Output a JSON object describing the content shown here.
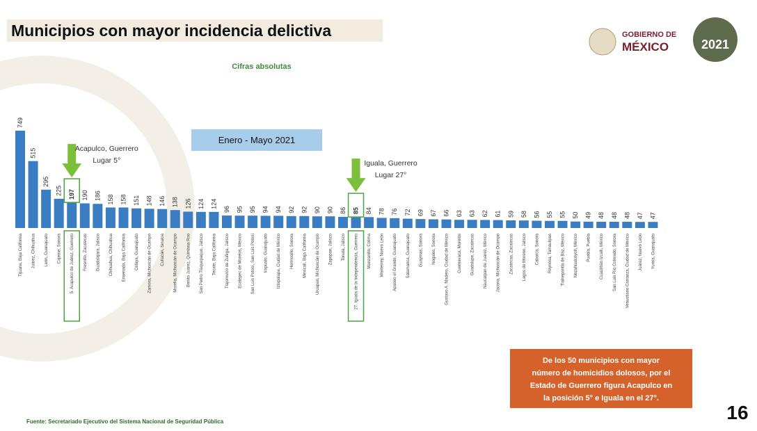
{
  "header": {
    "title": "Municipios con mayor incidencia delictiva",
    "logo_line1": "GOBIERNO DE",
    "logo_line2": "MÉXICO",
    "logo_year": "2021"
  },
  "chart_data": {
    "type": "bar",
    "subtitle": "Cifras absolutas",
    "period": "Enero - Mayo 2021",
    "color": "#3b7dc2",
    "categories": [
      "Tijuana, Baja California",
      "Juárez, Chihuahua",
      "León, Guanajuato",
      "Cajeme, Sonora",
      "5. Acapulco de Juárez, Guerrero",
      "Fresnillo, Zacatecas",
      "Guadalajara, Jalisco",
      "Chihuahua, Chihuahua",
      "Ensenada, Baja California",
      "Celaya, Guanajuato",
      "Zamora, Michoacán de Ocampo",
      "Culiacán, Sinaloa",
      "Morelia, Michoacán de Ocampo",
      "Benito Juárez, Quintana Roo",
      "San Pedro Tlaquepaque, Jalisco",
      "Tecate, Baja California",
      "Tlajomulco de Zúñiga, Jalisco",
      "Ecatepec de Morelos, México",
      "San Luis Potosí, San Luis Potosí",
      "Irapuato, Guanajuato",
      "Iztapalapa, Ciudad de México",
      "Hermosillo, Sonora",
      "Mexicali, Baja California",
      "Uruapan, Michoacán de Ocampo",
      "Zapopan, Jalisco",
      "Tonalá, Jalisco",
      "27. Iguala de la Independencia, Guerrero",
      "Manzanillo, Colima",
      "Monterrey, Nuevo León",
      "Apaseo el Grande, Guanajuato",
      "Salamanca, Guanajuato",
      "Guaymas, Sonora",
      "Nogales, Sonora",
      "Gustavo A. Madero, Ciudad de México",
      "Cuernavaca, Morelos",
      "Guadalupe, Zacatecas",
      "Naucalpan de Juárez, México",
      "Jacona, Michoacán de Ocampo",
      "Zacatecas, Zacatecas",
      "Lagos de Moreno, Jalisco",
      "Caborca, Sonora",
      "Reynosa, Tamaulipas",
      "Tlalnepantla de Baz, México",
      "Nezahualcóyotl, México",
      "Puebla, Puebla",
      "Cuautitlán Izcalli, México",
      "San Luis Río Colorado, Sonora",
      "Venustiano Carranza, Ciudad de México",
      "Juárez, Nuevo León",
      "Yuriria, Guanajuato"
    ],
    "values": [
      749,
      515,
      295,
      225,
      197,
      190,
      186,
      158,
      158,
      151,
      148,
      146,
      138,
      126,
      124,
      124,
      96,
      95,
      95,
      94,
      94,
      92,
      92,
      90,
      90,
      86,
      85,
      84,
      78,
      76,
      72,
      69,
      67,
      66,
      63,
      63,
      62,
      61,
      59,
      58,
      56,
      55,
      55,
      50,
      49,
      48,
      48,
      48,
      47,
      47
    ],
    "annotations": [
      {
        "line1": "Acapulco, Guerrero",
        "line2": "Lugar 5°"
      },
      {
        "line1": "Iguala, Guerrero",
        "line2": "Lugar 27°"
      }
    ]
  },
  "note": [
    "De los 50 municipios con mayor",
    "número de homicidios dolosos, por el",
    "Estado de Guerrero figura Acapulco en",
    "la posición 5° e Iguala en el 27°."
  ],
  "footer": {
    "source": "Fuente: Secretariado Ejecutivo del Sistema Nacional de Seguridad Pública",
    "page": "16"
  }
}
